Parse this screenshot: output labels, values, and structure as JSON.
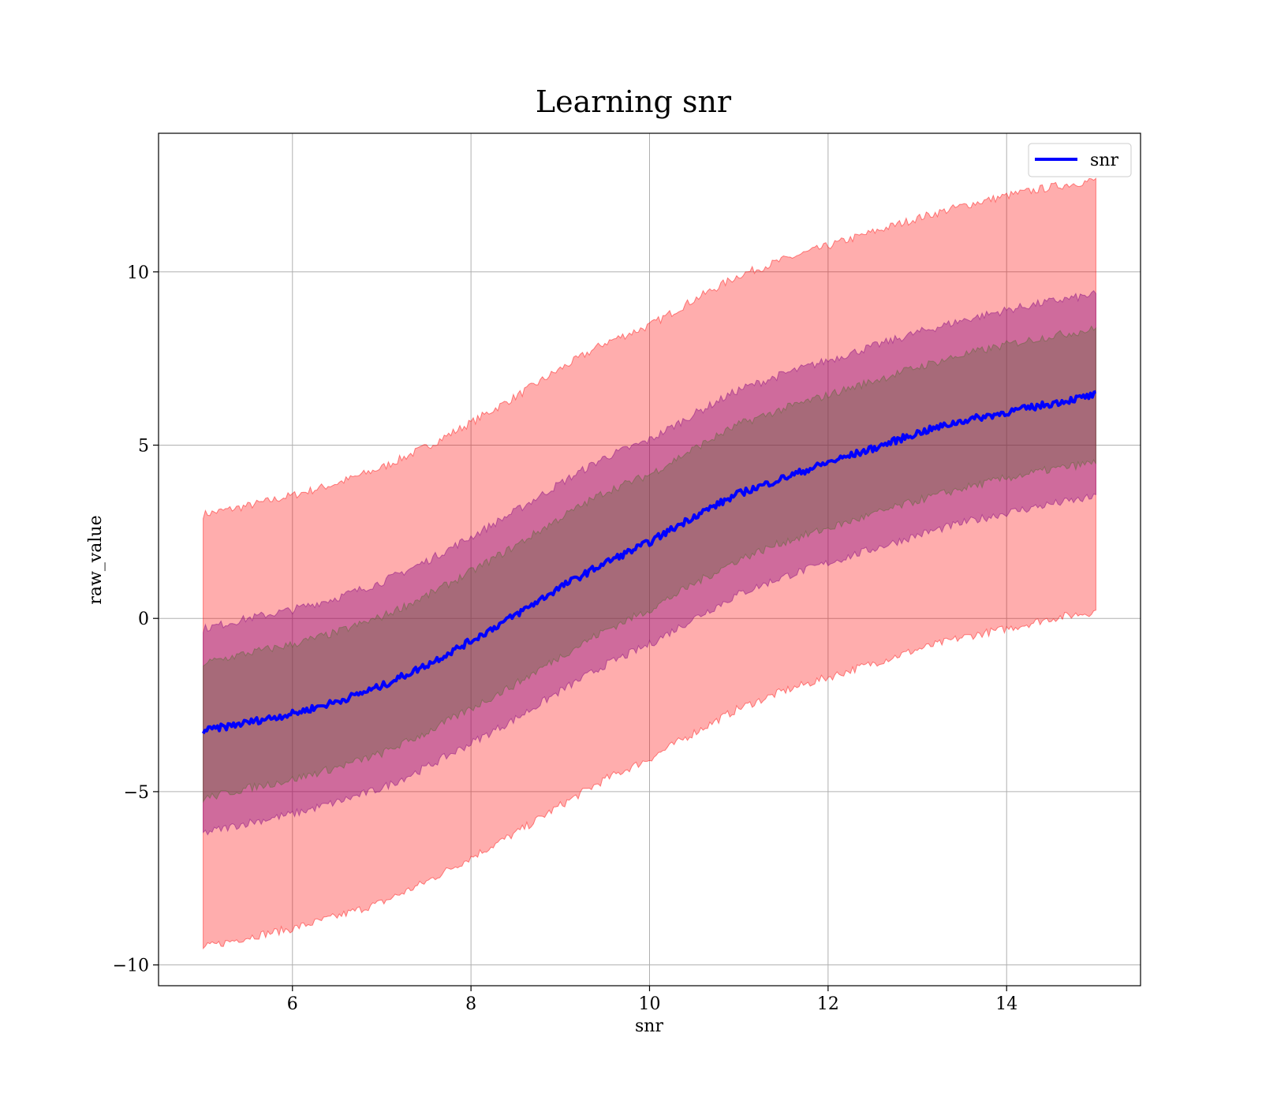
{
  "chart_data": {
    "type": "area",
    "title": "Learning snr",
    "xlabel": "snr",
    "ylabel": "raw_value",
    "xlim": [
      4.5,
      15.5
    ],
    "ylim": [
      -10.6,
      14.0
    ],
    "xticks": [
      6,
      8,
      10,
      12,
      14
    ],
    "yticks": [
      -10,
      -5,
      0,
      5,
      10
    ],
    "xtick_labels": [
      "6",
      "8",
      "10",
      "12",
      "14"
    ],
    "ytick_labels": [
      "−10",
      "−5",
      "0",
      "5",
      "10"
    ],
    "grid": true,
    "legend": {
      "placement": "top-right",
      "entries": [
        "snr"
      ]
    },
    "x": [
      5,
      5.5,
      6,
      6.5,
      7,
      7.5,
      8,
      8.5,
      9,
      9.5,
      10,
      10.5,
      11,
      11.5,
      12,
      12.5,
      13,
      13.5,
      14,
      14.5,
      15
    ],
    "series": [
      {
        "name": "snr",
        "color": "#0000ff",
        "values": [
          -3.25,
          -3.0,
          -2.75,
          -2.4,
          -1.95,
          -1.35,
          -0.65,
          0.1,
          0.9,
          1.6,
          2.2,
          2.95,
          3.6,
          4.05,
          4.5,
          4.9,
          5.35,
          5.7,
          5.95,
          6.2,
          6.45
        ]
      }
    ],
    "bands": [
      {
        "color": "#ff0000",
        "opacity": 0.32,
        "upper": [
          3.0,
          3.25,
          3.55,
          3.9,
          4.35,
          4.95,
          5.65,
          6.4,
          7.2,
          7.95,
          8.45,
          9.2,
          9.9,
          10.35,
          10.75,
          11.15,
          11.55,
          11.9,
          12.2,
          12.45,
          12.65
        ],
        "lower": [
          -9.5,
          -9.2,
          -8.95,
          -8.6,
          -8.2,
          -7.6,
          -6.9,
          -6.2,
          -5.4,
          -4.65,
          -4.05,
          -3.3,
          -2.6,
          -2.1,
          -1.7,
          -1.3,
          -0.9,
          -0.55,
          -0.3,
          0.0,
          0.2
        ]
      },
      {
        "color": "#800080",
        "opacity": 0.38,
        "upper": [
          -0.3,
          0.0,
          0.25,
          0.6,
          1.05,
          1.65,
          2.35,
          3.1,
          3.9,
          4.65,
          5.15,
          5.9,
          6.6,
          7.05,
          7.45,
          7.85,
          8.25,
          8.6,
          8.9,
          9.15,
          9.35
        ],
        "lower": [
          -6.2,
          -5.9,
          -5.65,
          -5.3,
          -4.9,
          -4.3,
          -3.6,
          -2.9,
          -2.1,
          -1.35,
          -0.75,
          0.0,
          0.7,
          1.2,
          1.6,
          2.0,
          2.4,
          2.75,
          3.05,
          3.3,
          3.5
        ]
      },
      {
        "color": "#556b2f",
        "opacity": 0.32,
        "upper": [
          -1.3,
          -1.0,
          -0.75,
          -0.4,
          0.05,
          0.65,
          1.35,
          2.1,
          2.9,
          3.65,
          4.15,
          4.9,
          5.6,
          6.05,
          6.45,
          6.85,
          7.25,
          7.6,
          7.9,
          8.15,
          8.35
        ],
        "lower": [
          -5.2,
          -4.9,
          -4.65,
          -4.3,
          -3.9,
          -3.3,
          -2.6,
          -1.9,
          -1.1,
          -0.35,
          0.25,
          1.0,
          1.7,
          2.2,
          2.6,
          3.0,
          3.4,
          3.75,
          4.05,
          4.3,
          4.5
        ]
      }
    ]
  }
}
